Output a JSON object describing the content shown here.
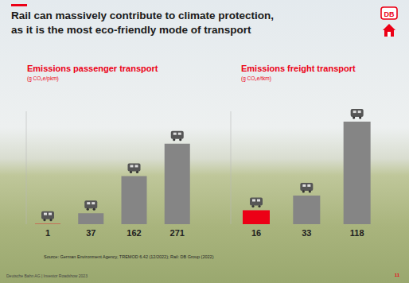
{
  "title": "Rail can massively contribute to climate protection,\nas it is the most eco-friendly mode of transport",
  "logo": "DB",
  "chart_data": [
    {
      "type": "bar",
      "title": "Emissions passenger transport",
      "subtitle": "(g CO₂e/pkm)",
      "categories": [
        null,
        null,
        null,
        null
      ],
      "values": [
        1,
        37,
        162,
        271
      ],
      "colors": [
        "#ec0016",
        "#858585",
        "#858585",
        "#858585"
      ],
      "ylim": [
        0,
        380
      ],
      "data_labels": true,
      "tick_labels": false
    },
    {
      "type": "bar",
      "title": "Emissions freight transport",
      "subtitle": "(g CO₂e/tkm)",
      "categories": [
        null,
        null,
        null
      ],
      "values": [
        16,
        33,
        118
      ],
      "colors": [
        "#ec0016",
        "#858585",
        "#858585"
      ],
      "ylim": [
        0,
        130
      ],
      "data_labels": true,
      "tick_labels": false
    }
  ],
  "source": "Source: German Environment Agency, TREMOD 6.42 (12/2022); Rail: DB Group (2022)",
  "footer": "Deutsche Bahn AG | Investor Roadshow 2023",
  "page": "11"
}
